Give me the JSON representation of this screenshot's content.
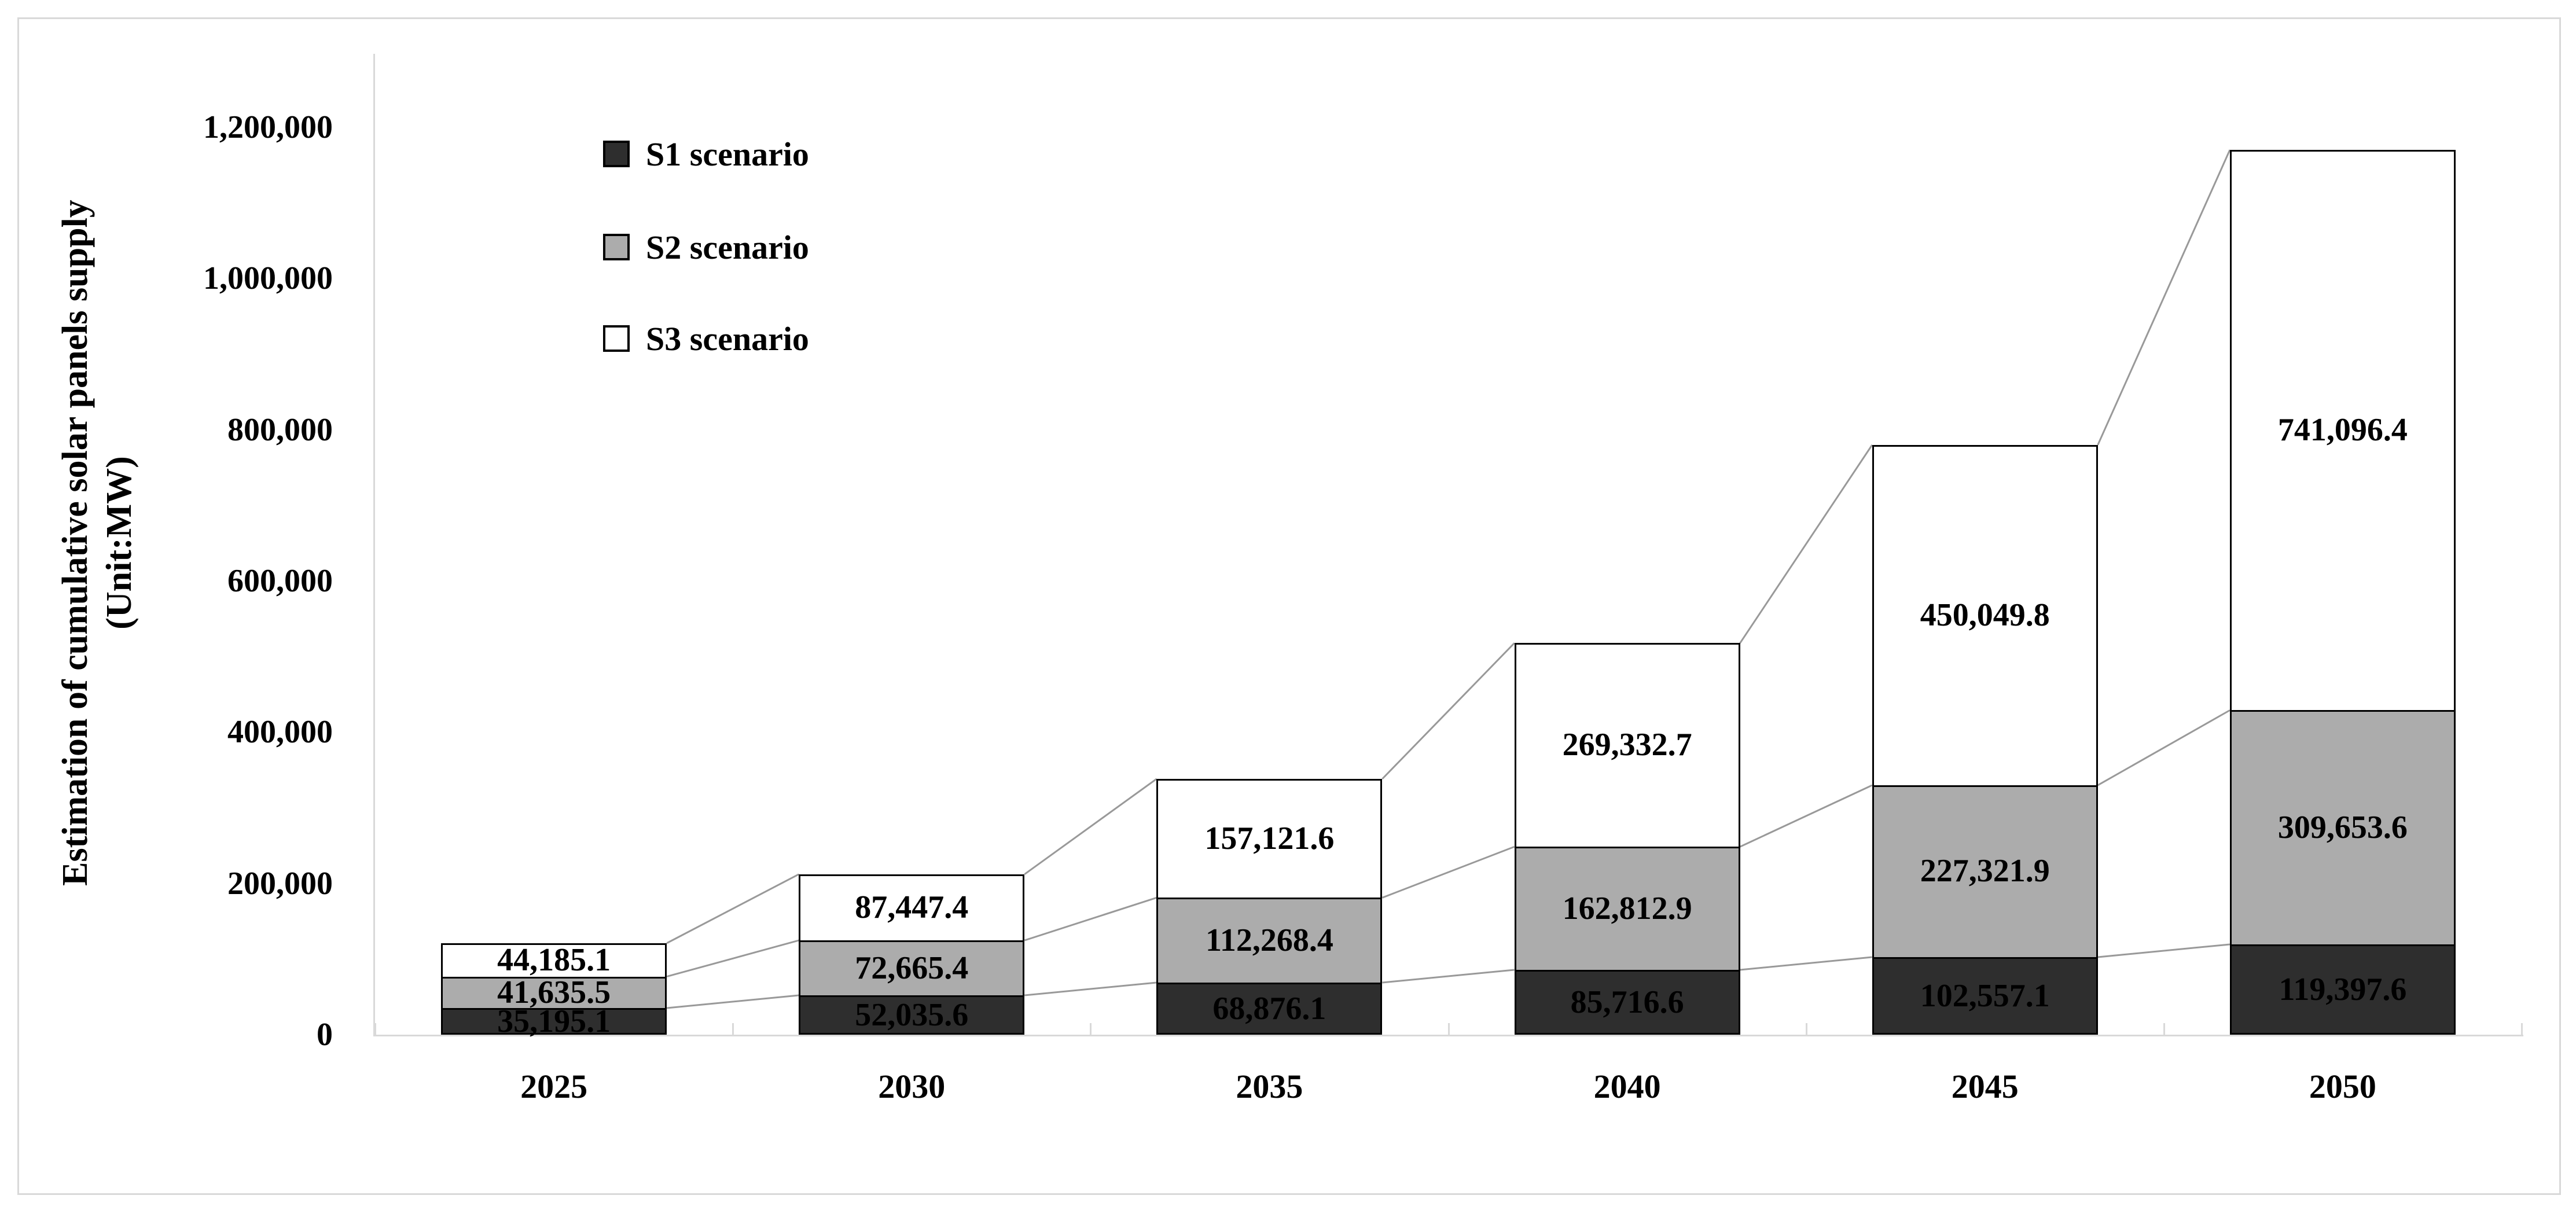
{
  "figure": {
    "background": "#ffffff",
    "border_color": "#d9d9d9"
  },
  "chart_data": {
    "type": "bar",
    "stacked": true,
    "title": "",
    "xlabel": "",
    "ylabel_line1": "Estimation of cumulative solar panels supply",
    "ylabel_line2": "(Unit:MW)",
    "categories": [
      "2025",
      "2030",
      "2035",
      "2040",
      "2045",
      "2050"
    ],
    "series": [
      {
        "name": "S1 scenario",
        "color": "#2e2e2e",
        "values": [
          35195.1,
          52035.6,
          68876.1,
          85716.6,
          102557.1,
          119397.6
        ],
        "labels": [
          "35,195.1",
          "52,035.6",
          "68,876.1",
          "85,716.6",
          "102,557.1",
          "119,397.6"
        ]
      },
      {
        "name": "S2 scenario",
        "color": "#acacac",
        "values": [
          41635.5,
          72665.4,
          112268.4,
          162812.9,
          227321.9,
          309653.6
        ],
        "labels": [
          "41,635.5",
          "72,665.4",
          "112,268.4",
          "162,812.9",
          "227,321.9",
          "309,653.6"
        ]
      },
      {
        "name": "S3 scenario",
        "color": "#ffffff",
        "values": [
          44185.1,
          87447.4,
          157121.6,
          269332.7,
          450049.8,
          741096.4
        ],
        "labels": [
          "44,185.1",
          "87,447.4",
          "157,121.6",
          "269,332.7",
          "450,049.8",
          "741,096.4"
        ]
      }
    ],
    "y_ticks": [
      {
        "value": 0,
        "label": "0"
      },
      {
        "value": 200000,
        "label": "200,000"
      },
      {
        "value": 400000,
        "label": "400,000"
      },
      {
        "value": 600000,
        "label": "600,000"
      },
      {
        "value": 800000,
        "label": "800,000"
      },
      {
        "value": 1000000,
        "label": "1,000,000"
      },
      {
        "value": 1200000,
        "label": "1,200,000"
      }
    ],
    "ylim": [
      0,
      1300000
    ],
    "grid": false,
    "legend_position": "inside-top-left",
    "label_color": "#000000",
    "bar_border_color": "#000000",
    "connector_color": "#999999",
    "axis_color": "#d9d9d9"
  }
}
